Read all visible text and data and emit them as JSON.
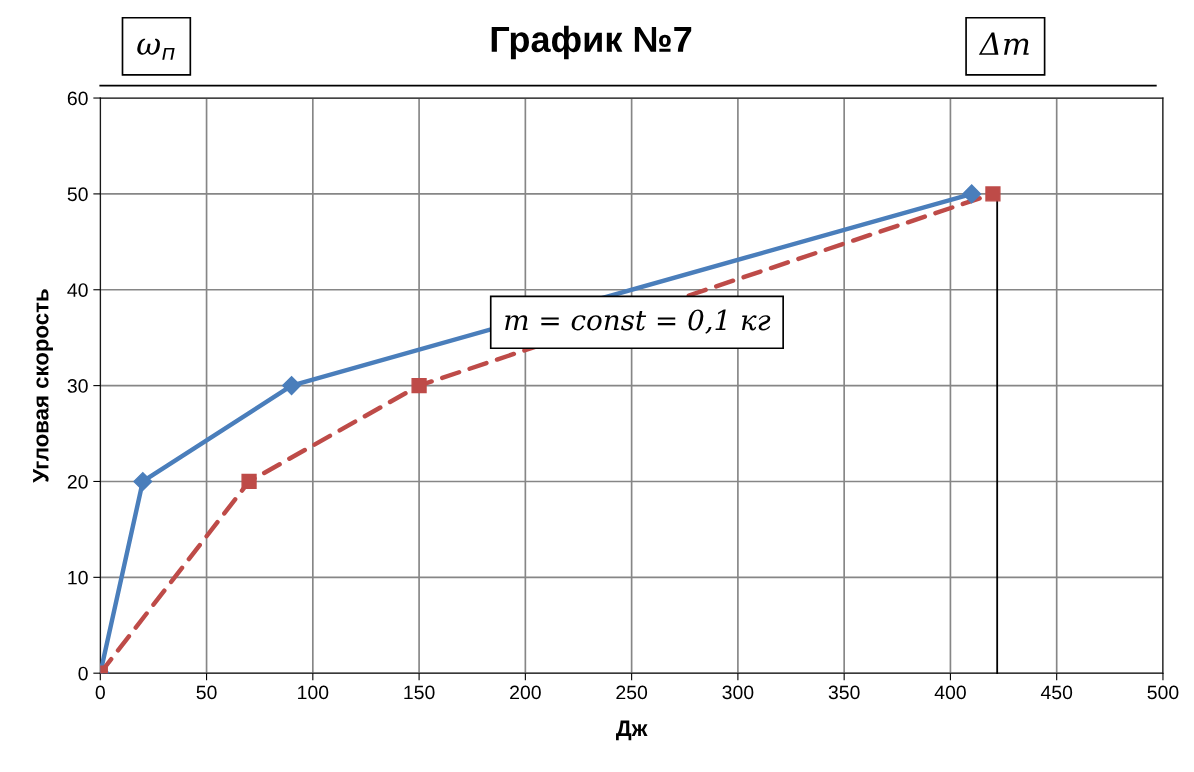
{
  "chart_data": {
    "type": "line",
    "title": "График №7",
    "xlabel": "Дж",
    "ylabel": "Угловая скорость",
    "series": [
      {
        "color": "#4a7ebb",
        "x": [
          0,
          20,
          90,
          410
        ],
        "values": [
          0,
          20,
          30,
          50
        ],
        "marker": "diamond",
        "line_style": "solid"
      },
      {
        "color": "#be4b48",
        "x": [
          0,
          70,
          150,
          420
        ],
        "values": [
          0,
          20,
          30,
          50
        ],
        "marker": "square",
        "line_style": "dashed"
      }
    ],
    "xlim": [
      0,
      500
    ],
    "xticks": [
      0,
      50,
      100,
      150,
      200,
      250,
      300,
      350,
      400,
      450,
      500
    ],
    "ylim": [
      0,
      60
    ],
    "yticks": [
      0,
      10,
      20,
      30,
      40,
      50,
      60
    ],
    "grid": true,
    "legend": false,
    "ref_lines": [
      {
        "axis": "x",
        "value": 422,
        "color": "#000000"
      }
    ],
    "annotations": [
      "ω$_{п}$",
      "Δm",
      "m = const = 0,1 кг"
    ]
  }
}
